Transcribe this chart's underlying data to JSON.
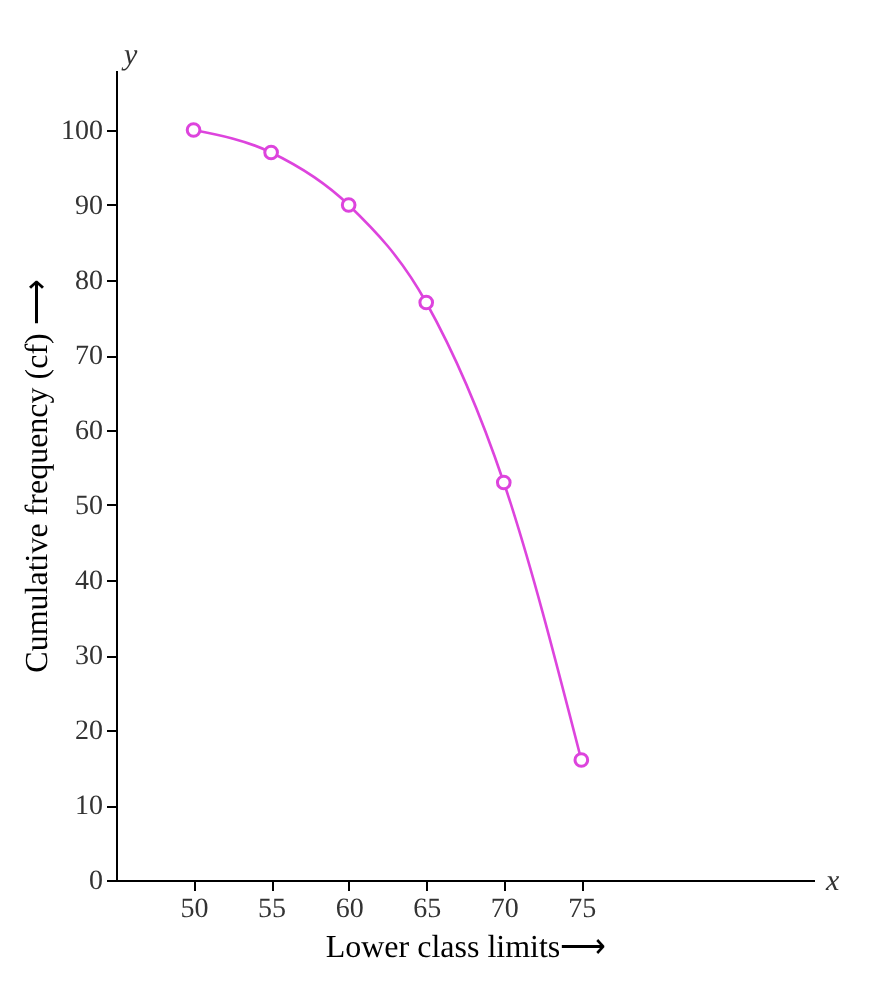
{
  "chart_data": {
    "type": "line",
    "xlabel": "Lower class limits⟶",
    "ylabel": "Cumulative frequency (cf) ⟶",
    "annotations": [
      "y",
      "x"
    ],
    "x": [
      50,
      55,
      60,
      65,
      70,
      75
    ],
    "series": [
      {
        "color": "#dd44dd",
        "values": [
          100,
          97,
          90,
          77,
          53,
          16
        ]
      }
    ],
    "xlim": [
      45,
      90
    ],
    "xticks": [
      50,
      55,
      60,
      65,
      70,
      75
    ],
    "ylim": [
      0,
      108
    ],
    "yticks": [
      0,
      10,
      20,
      30,
      40,
      50,
      60,
      70,
      80,
      90,
      100
    ],
    "grid": false,
    "marker": "circle",
    "line_style": "solid"
  }
}
